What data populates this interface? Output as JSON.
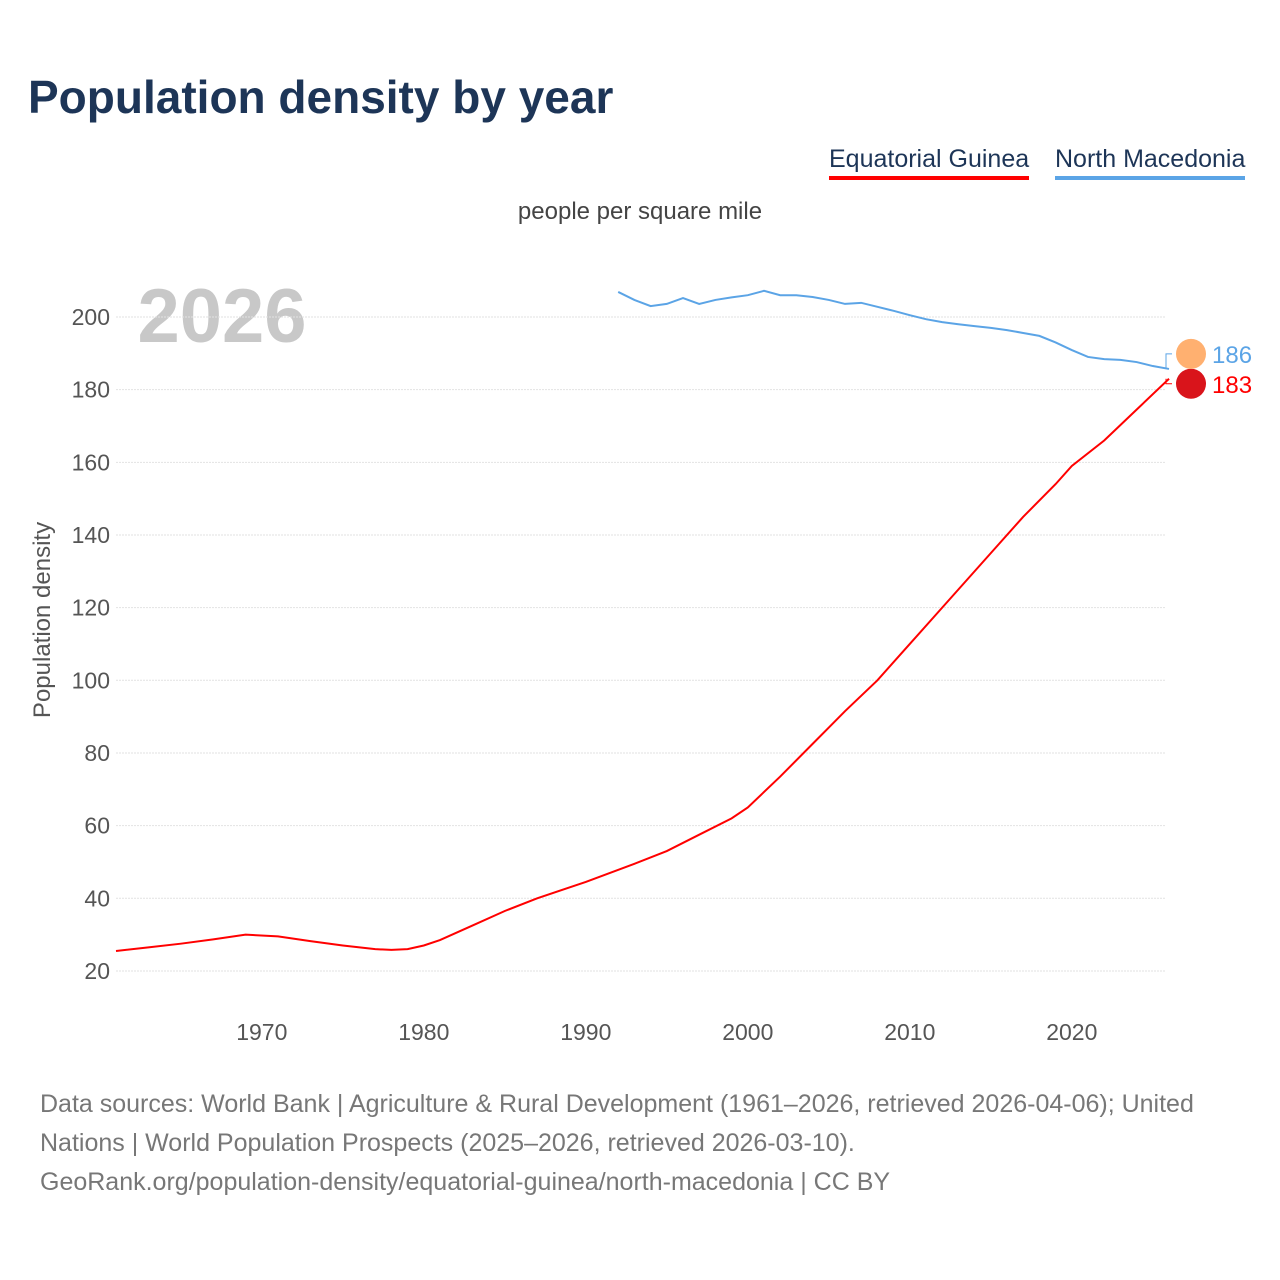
{
  "title": "Population density by year",
  "subtitle": "people per square mile",
  "year_watermark": "2026",
  "footer": {
    "sources": "Data sources: World Bank | Agriculture & Rural Development (1961–2026, retrieved 2026-04-06); United Nations | World Population Prospects (2025–2026, retrieved 2026-03-10).",
    "link": "GeoRank.org/population-density/equatorial-guinea/north-macedonia | CC BY"
  },
  "chart_data": {
    "type": "line",
    "title": "Population density by year",
    "ylabel": "Population density",
    "xlabel": "",
    "xlim": [
      1961,
      2026
    ],
    "ylim": [
      10,
      210
    ],
    "xticks": [
      1970,
      1980,
      1990,
      2000,
      2010,
      2020
    ],
    "yticks": [
      20,
      40,
      60,
      80,
      100,
      120,
      140,
      160,
      180,
      200
    ],
    "grid": true,
    "legend_position": "top-right",
    "series": [
      {
        "name": "Equatorial Guinea",
        "color": "#ff0000",
        "end_label": "183",
        "x": [
          1961,
          1963,
          1965,
          1967,
          1969,
          1971,
          1973,
          1975,
          1977,
          1978,
          1979,
          1980,
          1981,
          1983,
          1985,
          1987,
          1990,
          1993,
          1995,
          1997,
          1999,
          2000,
          2002,
          2004,
          2005,
          2006,
          2008,
          2010,
          2012,
          2015,
          2017,
          2019,
          2020,
          2022,
          2024,
          2026
        ],
        "y": [
          25.5,
          26.5,
          27.5,
          28.7,
          30,
          29.5,
          28.2,
          27,
          26,
          25.8,
          26,
          27,
          28.5,
          32.5,
          36.5,
          40,
          44.5,
          49.5,
          53,
          57.5,
          62,
          65,
          73.5,
          82.5,
          87,
          91.5,
          100,
          110,
          120,
          135,
          145,
          154,
          159,
          166,
          174.5,
          183
        ]
      },
      {
        "name": "North Macedonia",
        "color": "#5ba4e6",
        "end_label": "186",
        "x": [
          1992,
          1993,
          1994,
          1995,
          1996,
          1997,
          1998,
          1999,
          2000,
          2001,
          2002,
          2003,
          2004,
          2005,
          2006,
          2007,
          2008,
          2009,
          2010,
          2011,
          2012,
          2013,
          2014,
          2015,
          2016,
          2017,
          2018,
          2019,
          2020,
          2021,
          2022,
          2023,
          2024,
          2025,
          2026
        ],
        "y": [
          206.9,
          204.7,
          203,
          203.6,
          205.2,
          203.6,
          204.7,
          205.4,
          206,
          207.2,
          206,
          206,
          205.5,
          204.7,
          203.6,
          203.9,
          202.8,
          201.7,
          200.5,
          199.4,
          198.6,
          198,
          197.5,
          197,
          196.4,
          195.6,
          194.8,
          193,
          190.9,
          189,
          188.4,
          188.2,
          187.6,
          186.5,
          185.7
        ]
      }
    ]
  }
}
